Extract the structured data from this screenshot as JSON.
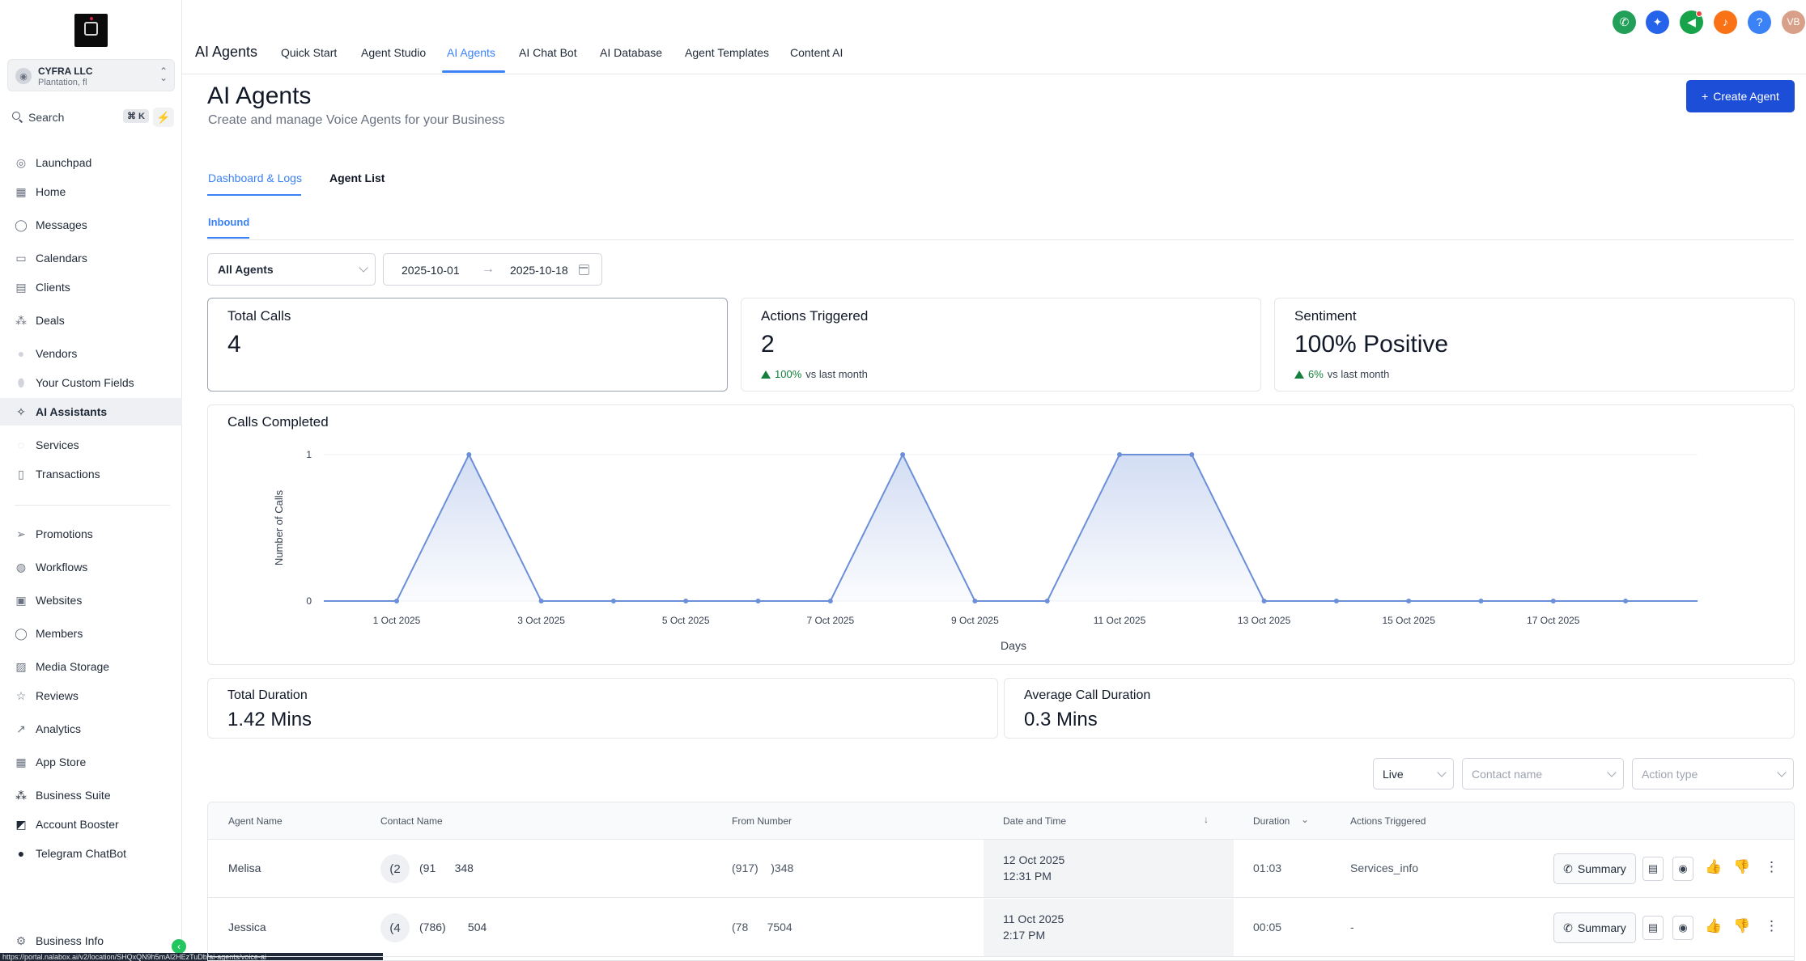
{
  "sidebar": {
    "account": {
      "name": "CYFRA LLC",
      "location": "Plantation, fl"
    },
    "search": {
      "label": "Search",
      "shortcut": "⌘ K"
    },
    "items": [
      {
        "label": "Launchpad",
        "icon": "launchpad-icon"
      },
      {
        "label": "Home",
        "icon": "home-icon"
      },
      {
        "label": "Messages",
        "icon": "messages-icon"
      },
      {
        "label": "Calendars",
        "icon": "calendar-icon"
      },
      {
        "label": "Clients",
        "icon": "clients-icon"
      },
      {
        "label": "Deals",
        "icon": "deals-icon"
      },
      {
        "label": "Vendors",
        "icon": "vendors-icon"
      },
      {
        "label": "Your Custom Fields",
        "icon": "custom-fields-icon"
      },
      {
        "label": "AI Assistants",
        "icon": "ai-assistants-icon"
      },
      {
        "label": "Services",
        "icon": "services-icon"
      },
      {
        "label": "Transactions",
        "icon": "transactions-icon"
      },
      {
        "label": "Promotions",
        "icon": "promotions-icon"
      },
      {
        "label": "Workflows",
        "icon": "workflows-icon"
      },
      {
        "label": "Websites",
        "icon": "websites-icon"
      },
      {
        "label": "Members",
        "icon": "members-icon"
      },
      {
        "label": "Media Storage",
        "icon": "media-storage-icon"
      },
      {
        "label": "Reviews",
        "icon": "reviews-icon"
      },
      {
        "label": "Analytics",
        "icon": "analytics-icon"
      },
      {
        "label": "App Store",
        "icon": "app-store-icon"
      },
      {
        "label": "Business Suite",
        "icon": "business-suite-icon"
      },
      {
        "label": "Account Booster",
        "icon": "account-booster-icon"
      },
      {
        "label": "Telegram ChatBot",
        "icon": "telegram-icon"
      },
      {
        "label": "Business Info",
        "icon": "gear-icon"
      }
    ],
    "active_item": "AI Assistants"
  },
  "topbar": {
    "title": "AI Agents",
    "tabs": [
      {
        "label": "Quick Start"
      },
      {
        "label": "Agent Studio"
      },
      {
        "label": "AI Agents"
      },
      {
        "label": "AI Chat Bot"
      },
      {
        "label": "AI Database"
      },
      {
        "label": "Agent Templates"
      },
      {
        "label": "Content AI"
      }
    ],
    "active_tab": "AI Agents",
    "user_initials": "VB",
    "icons": [
      "phone-icon",
      "bot-icon",
      "megaphone-icon",
      "bell-icon",
      "help-icon"
    ],
    "icon_colors": {
      "phone": "#22a05a",
      "bot": "#2563eb",
      "megaphone": "#16a34a",
      "bell": "#f97316",
      "help": "#3b82f6",
      "avatar": "#d9a089"
    }
  },
  "page": {
    "title": "AI Agents",
    "subtitle": "Create and manage Voice Agents for your Business",
    "create_button": "Create Agent",
    "tabs": [
      "Dashboard & Logs",
      "Agent List"
    ],
    "subtab": "Inbound",
    "agent_filter": "All Agents",
    "date_from": "2025-10-01",
    "date_to": "2025-10-18"
  },
  "stats": {
    "total_calls": {
      "label": "Total Calls",
      "value": "4"
    },
    "actions_triggered": {
      "label": "Actions Triggered",
      "value": "2",
      "change": "100%",
      "change_suffix": "vs last month"
    },
    "sentiment": {
      "label": "Sentiment",
      "value": "100% Positive",
      "change": "6%",
      "change_suffix": "vs last month"
    },
    "total_duration": {
      "label": "Total Duration",
      "value": "1.42 Mins"
    },
    "avg_duration": {
      "label": "Average Call Duration",
      "value": "0.3 Mins"
    }
  },
  "chart_data": {
    "type": "area",
    "title": "Calls Completed",
    "xlabel": "Days",
    "ylabel": "Number of Calls",
    "x": [
      "1 Oct 2025",
      "2 Oct 2025",
      "3 Oct 2025",
      "4 Oct 2025",
      "5 Oct 2025",
      "6 Oct 2025",
      "7 Oct 2025",
      "8 Oct 2025",
      "9 Oct 2025",
      "10 Oct 2025",
      "11 Oct 2025",
      "12 Oct 2025",
      "13 Oct 2025",
      "14 Oct 2025",
      "15 Oct 2025",
      "16 Oct 2025",
      "17 Oct 2025",
      "18 Oct 2025"
    ],
    "x_tick_labels": [
      "1 Oct 2025",
      "3 Oct 2025",
      "5 Oct 2025",
      "7 Oct 2025",
      "9 Oct 2025",
      "11 Oct 2025",
      "13 Oct 2025",
      "15 Oct 2025",
      "17 Oct 2025"
    ],
    "values": [
      0,
      1,
      0,
      0,
      0,
      0,
      0,
      1,
      0,
      0,
      1,
      1,
      0,
      0,
      0,
      0,
      0,
      0
    ],
    "y_ticks": [
      0,
      1
    ],
    "ylim": [
      0,
      1
    ],
    "grid": true,
    "color": "#6b8fd8"
  },
  "filters": {
    "mode": "Live",
    "contact_placeholder": "Contact name",
    "action_placeholder": "Action type"
  },
  "table": {
    "headers": [
      "Agent Name",
      "Contact Name",
      "From Number",
      "Date and Time",
      "Duration",
      "Actions Triggered"
    ],
    "summary_label": "Summary",
    "rows": [
      {
        "agent": "Melisa",
        "avatar": "(2",
        "contact": "(91      348",
        "from": "(917)    )348",
        "date": "12 Oct 2025",
        "time": "12:31 PM",
        "duration": "01:03",
        "action": "Services_info"
      },
      {
        "agent": "Jessica",
        "avatar": "(4",
        "contact": "(786)       504",
        "from": "(78      7504",
        "date": "11 Oct 2025",
        "time": "2:17 PM",
        "duration": "00:05",
        "action": "-"
      }
    ]
  },
  "status_bar_url": "https://portal.nalabox.ai/v2/location/SHQxQN9h5mAl2HEzTuDb/ai-agents/voice-ai"
}
